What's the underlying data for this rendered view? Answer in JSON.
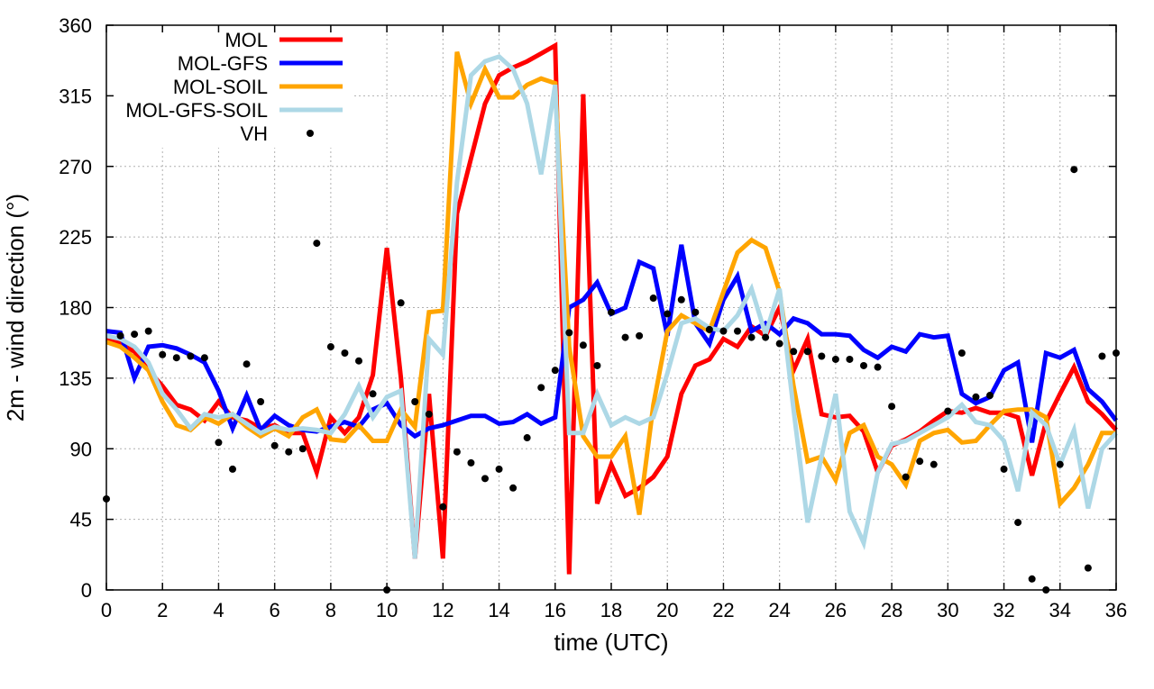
{
  "chart_data": {
    "type": "line",
    "title": "",
    "xlabel": "time (UTC)",
    "ylabel": "2m - wind direction (°)",
    "xlim": [
      0,
      36
    ],
    "ylim": [
      0,
      360
    ],
    "xticks": [
      0,
      2,
      4,
      6,
      8,
      10,
      12,
      14,
      16,
      18,
      20,
      22,
      24,
      26,
      28,
      30,
      32,
      34,
      36
    ],
    "yticks": [
      0,
      45,
      90,
      135,
      180,
      225,
      270,
      315,
      360
    ],
    "grid": true,
    "legend_position": "top-left",
    "x": [
      0,
      0.5,
      1,
      1.5,
      2,
      2.5,
      3,
      3.5,
      4,
      4.5,
      5,
      5.5,
      6,
      6.5,
      7,
      7.5,
      8,
      8.5,
      9,
      9.5,
      10,
      10.5,
      11,
      11.5,
      12,
      12.5,
      13,
      13.5,
      14,
      14.5,
      15,
      15.5,
      16,
      16.5,
      17,
      17.5,
      18,
      18.5,
      19,
      19.5,
      20,
      20.5,
      21,
      21.5,
      22,
      22.5,
      23,
      23.5,
      24,
      24.5,
      25,
      25.5,
      26,
      26.5,
      27,
      27.5,
      28,
      28.5,
      29,
      29.5,
      30,
      30.5,
      31,
      31.5,
      32,
      32.5,
      33,
      33.5,
      34,
      34.5,
      35,
      35.5,
      36
    ],
    "series": [
      {
        "name": "MOL",
        "color": "#ff0000",
        "style": "line",
        "values": [
          160,
          157,
          152,
          140,
          130,
          118,
          115,
          108,
          120,
          110,
          108,
          103,
          105,
          100,
          100,
          75,
          110,
          100,
          110,
          137,
          218,
          135,
          20,
          125,
          20,
          240,
          275,
          310,
          328,
          333,
          337,
          342,
          347,
          10,
          316,
          55,
          80,
          60,
          65,
          72,
          85,
          125,
          143,
          147,
          160,
          155,
          168,
          162,
          180,
          140,
          160,
          112,
          110,
          111,
          101,
          75,
          92,
          96,
          101,
          108,
          114,
          113,
          116,
          113,
          113,
          110,
          73,
          107,
          125,
          142,
          120,
          112,
          102
        ]
      },
      {
        "name": "MOL-GFS",
        "color": "#0000ff",
        "style": "line",
        "values": [
          165,
          164,
          135,
          155,
          156,
          154,
          150,
          145,
          127,
          103,
          124,
          102,
          111,
          105,
          102,
          101,
          104,
          107,
          104,
          115,
          119,
          105,
          98,
          103,
          105,
          108,
          111,
          111,
          106,
          107,
          112,
          106,
          110,
          180,
          185,
          196,
          176,
          180,
          209,
          205,
          162,
          220,
          170,
          157,
          185,
          200,
          165,
          170,
          163,
          173,
          170,
          163,
          163,
          162,
          153,
          148,
          155,
          152,
          163,
          161,
          162,
          125,
          119,
          123,
          140,
          145,
          94,
          151,
          148,
          153,
          128,
          120,
          108
        ]
      },
      {
        "name": "MOL-SOIL",
        "color": "#ffa500",
        "style": "line",
        "values": [
          158,
          155,
          148,
          140,
          120,
          105,
          102,
          110,
          106,
          112,
          104,
          98,
          103,
          98,
          110,
          115,
          96,
          95,
          105,
          95,
          95,
          115,
          104,
          177,
          178,
          343,
          310,
          332,
          314,
          314,
          322,
          326,
          323,
          155,
          98,
          85,
          85,
          98,
          48,
          118,
          165,
          175,
          170,
          165,
          190,
          215,
          223,
          218,
          190,
          130,
          82,
          85,
          70,
          100,
          105,
          85,
          80,
          67,
          95,
          100,
          102,
          94,
          95,
          105,
          114,
          115,
          115,
          110,
          55,
          65,
          80,
          100,
          100
        ]
      },
      {
        "name": "MOL-GFS-SOIL",
        "color": "#add8e6",
        "style": "line",
        "values": [
          162,
          160,
          155,
          145,
          125,
          115,
          103,
          112,
          110,
          112,
          106,
          100,
          104,
          102,
          103,
          102,
          100,
          112,
          130,
          110,
          123,
          127,
          20,
          160,
          150,
          260,
          328,
          337,
          340,
          332,
          310,
          265,
          322,
          100,
          100,
          125,
          105,
          110,
          106,
          110,
          138,
          170,
          173,
          167,
          165,
          175,
          192,
          163,
          192,
          115,
          43,
          85,
          125,
          50,
          30,
          75,
          93,
          95,
          100,
          105,
          110,
          118,
          107,
          105,
          95,
          63,
          113,
          105,
          80,
          102,
          52,
          90,
          100
        ]
      },
      {
        "name": "VH",
        "color": "#000000",
        "style": "points",
        "x": [
          0,
          0.5,
          1,
          1.5,
          2,
          2.5,
          3,
          3.5,
          4,
          4.5,
          5,
          5.5,
          6,
          6.5,
          7,
          7.25,
          7.5,
          8,
          8.5,
          9,
          9.5,
          10,
          10.5,
          11,
          11.5,
          12,
          12.5,
          13,
          13.5,
          14,
          14.5,
          15,
          15.5,
          16,
          16.5,
          17,
          17.5,
          18,
          18.5,
          19,
          19.5,
          20,
          20.5,
          21,
          21.5,
          22,
          22.5,
          23,
          23.5,
          24,
          24.5,
          25,
          25.5,
          26,
          26.5,
          27,
          27.5,
          28,
          28.5,
          29,
          29.5,
          30,
          30.5,
          31,
          31.5,
          32,
          32.5,
          33,
          33.5,
          34,
          34.5,
          35,
          35.5,
          36
        ],
        "values": [
          58,
          162,
          163,
          165,
          150,
          148,
          149,
          148,
          94,
          77,
          144,
          120,
          92,
          88,
          90,
          290,
          221,
          155,
          151,
          146,
          125,
          0,
          183,
          120,
          112,
          53,
          88,
          81,
          71,
          77,
          65,
          97,
          129,
          140,
          164,
          156,
          143,
          177,
          161,
          162,
          186,
          176,
          185,
          177,
          166,
          165,
          165,
          161,
          161,
          157,
          152,
          152,
          149,
          147,
          147,
          143,
          142,
          117,
          72,
          82,
          80,
          114,
          151,
          123,
          124,
          77,
          43,
          7,
          0,
          80,
          268,
          14,
          149,
          151
        ]
      }
    ]
  }
}
